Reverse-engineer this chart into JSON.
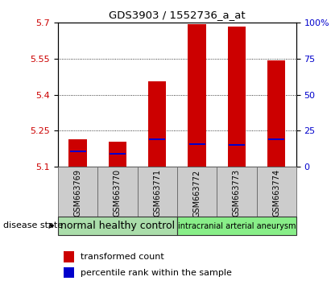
{
  "title": "GDS3903 / 1552736_a_at",
  "samples": [
    "GSM663769",
    "GSM663770",
    "GSM663771",
    "GSM663772",
    "GSM663773",
    "GSM663774"
  ],
  "transformed_counts": [
    5.215,
    5.205,
    5.455,
    5.695,
    5.685,
    5.545
  ],
  "percentile_ranks": [
    5.165,
    5.155,
    5.215,
    5.195,
    5.19,
    5.215
  ],
  "bar_bottom": 5.1,
  "ylim": [
    5.1,
    5.7
  ],
  "yticks_left": [
    5.1,
    5.25,
    5.4,
    5.55,
    5.7
  ],
  "yticks_right": [
    0,
    25,
    50,
    75,
    100
  ],
  "left_color": "#cc0000",
  "right_color": "#0000cc",
  "bar_width": 0.45,
  "groups": [
    {
      "label": "normal healthy control",
      "samples": [
        0,
        1,
        2
      ],
      "color": "#aaddaa",
      "fontsize": 9
    },
    {
      "label": "intracranial arterial aneurysm",
      "samples": [
        3,
        4,
        5
      ],
      "color": "#88ee88",
      "fontsize": 7
    }
  ],
  "disease_label": "disease state",
  "legend_red": "transformed count",
  "legend_blue": "percentile rank within the sample",
  "xtick_bg": "#cccccc",
  "plot_bg": "#ffffff"
}
